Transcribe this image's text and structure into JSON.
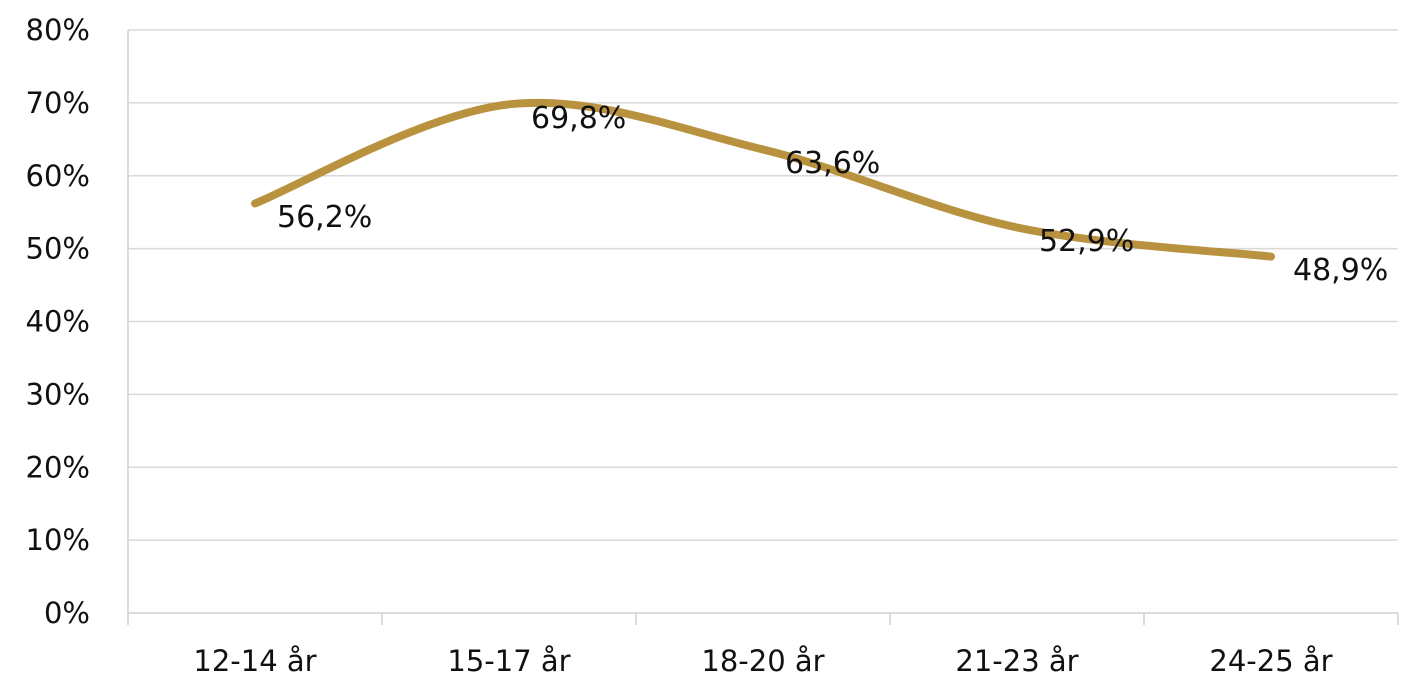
{
  "chart_data": {
    "type": "line",
    "title": "",
    "xlabel": "",
    "ylabel": "",
    "categories": [
      "12-14 år",
      "15-17 år",
      "18-20 år",
      "21-23 år",
      "24-25 år"
    ],
    "series": [
      {
        "values": [
          56.2,
          69.8,
          63.6,
          52.9,
          48.9
        ],
        "data_labels": [
          "56,2%",
          "69,8%",
          "63,6%",
          "52,9%",
          "48,9%"
        ],
        "color": "#B8923F",
        "smooth": true
      }
    ],
    "ylim": [
      0,
      80
    ],
    "yticks": [
      0,
      10,
      20,
      30,
      40,
      50,
      60,
      70,
      80
    ],
    "ytick_labels": [
      "0%",
      "10%",
      "20%",
      "30%",
      "40%",
      "50%",
      "60%",
      "70%",
      "80%"
    ],
    "grid": true,
    "legend": "none"
  }
}
